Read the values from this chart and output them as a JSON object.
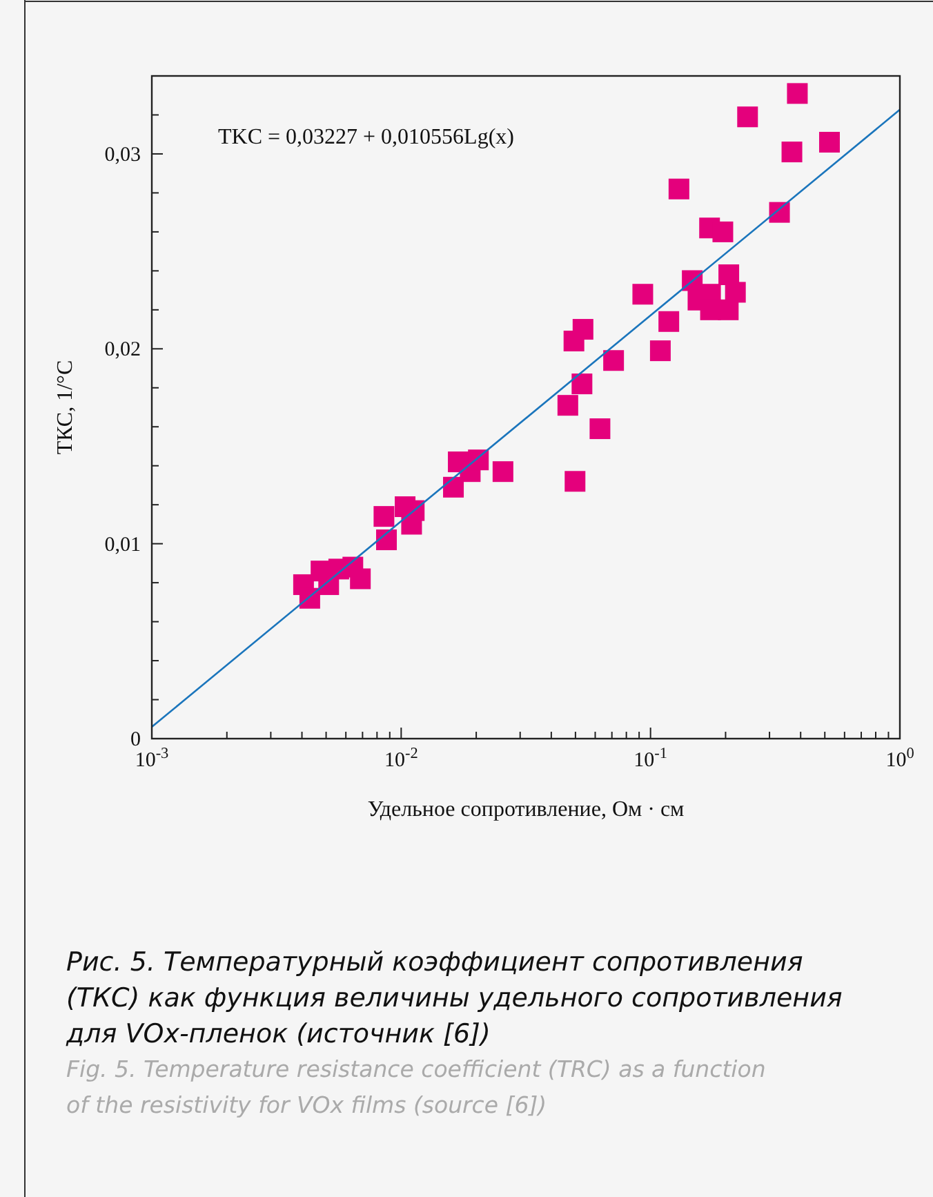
{
  "chart_data": {
    "type": "scatter",
    "xlabel": "Удельное сопротивление, Ом · см",
    "ylabel": "ТКС, 1/°С",
    "log": "x",
    "grid": false,
    "marker": "square",
    "xlim": [
      0.001,
      1
    ],
    "ylim": [
      0,
      0.034
    ],
    "xticks": [
      {
        "value": 0.001,
        "label": "10$^{-3}$"
      },
      {
        "value": 0.002,
        "label": null
      },
      {
        "value": 0.003,
        "label": null
      },
      {
        "value": 0.004,
        "label": null
      },
      {
        "value": 0.005,
        "label": null
      },
      {
        "value": 0.006,
        "label": null
      },
      {
        "value": 0.007,
        "label": null
      },
      {
        "value": 0.008,
        "label": null
      },
      {
        "value": 0.009,
        "label": null
      },
      {
        "value": 0.01,
        "label": "10$^{-2}$"
      },
      {
        "value": 0.02,
        "label": null
      },
      {
        "value": 0.03,
        "label": null
      },
      {
        "value": 0.04,
        "label": null
      },
      {
        "value": 0.05,
        "label": null
      },
      {
        "value": 0.06,
        "label": null
      },
      {
        "value": 0.07,
        "label": null
      },
      {
        "value": 0.08,
        "label": null
      },
      {
        "value": 0.09,
        "label": null
      },
      {
        "value": 0.1,
        "label": "10$^{-1}$"
      },
      {
        "value": 0.2,
        "label": null
      },
      {
        "value": 0.3,
        "label": null
      },
      {
        "value": 0.4,
        "label": null
      },
      {
        "value": 0.5,
        "label": null
      },
      {
        "value": 0.6,
        "label": null
      },
      {
        "value": 0.7,
        "label": null
      },
      {
        "value": 0.8,
        "label": null
      },
      {
        "value": 0.9,
        "label": null
      },
      {
        "value": 1,
        "label": "10$^{0}$"
      }
    ],
    "yticks": [
      {
        "value": 0,
        "label": "0"
      },
      {
        "value": 0.002,
        "label": null
      },
      {
        "value": 0.004,
        "label": null
      },
      {
        "value": 0.006,
        "label": null
      },
      {
        "value": 0.008,
        "label": null
      },
      {
        "value": 0.01,
        "label": "0,01"
      },
      {
        "value": 0.012,
        "label": null
      },
      {
        "value": 0.014,
        "label": null
      },
      {
        "value": 0.016,
        "label": null
      },
      {
        "value": 0.018,
        "label": null
      },
      {
        "value": 0.02,
        "label": "0,02"
      },
      {
        "value": 0.022,
        "label": null
      },
      {
        "value": 0.024,
        "label": null
      },
      {
        "value": 0.026,
        "label": null
      },
      {
        "value": 0.028,
        "label": null
      },
      {
        "value": 0.03,
        "label": "0,03"
      },
      {
        "value": 0.032,
        "label": null
      },
      {
        "value": 0.034,
        "label": null
      }
    ],
    "series": [
      {
        "color": "#e4007c",
        "x": [
          0.00406,
          0.0043,
          0.00477,
          0.00512,
          0.00562,
          0.0064,
          0.00686,
          0.00853,
          0.00873,
          0.01037,
          0.01128,
          0.01101,
          0.0162,
          0.01694,
          0.01892,
          0.0204,
          0.0256,
          0.0466,
          0.0493,
          0.0536,
          0.0531,
          0.0498,
          0.0627,
          0.0711,
          0.0931,
          0.1095,
          0.1184,
          0.13,
          0.147,
          0.155,
          0.1725,
          0.195,
          0.174,
          0.174,
          0.205,
          0.206,
          0.219,
          0.245,
          0.329,
          0.369,
          0.388,
          0.522
        ],
        "values": [
          0.0079,
          0.0072,
          0.0086,
          0.0079,
          0.0087,
          0.0088,
          0.0082,
          0.0114,
          0.0102,
          0.0119,
          0.0117,
          0.011,
          0.0129,
          0.0142,
          0.0137,
          0.0143,
          0.0137,
          0.0171,
          0.0204,
          0.021,
          0.0182,
          0.0132,
          0.0159,
          0.0194,
          0.0228,
          0.0199,
          0.0214,
          0.0282,
          0.0235,
          0.0225,
          0.0262,
          0.026,
          0.0228,
          0.022,
          0.022,
          0.0238,
          0.0229,
          0.0319,
          0.027,
          0.0301,
          0.0331,
          0.0306
        ]
      },
      {
        "type": "line",
        "color": "#1a75bc",
        "marker": "none",
        "x": [
          0.001,
          1
        ],
        "values": [
          0.0006,
          0.03227
        ]
      }
    ],
    "annotations": [
      "TKC = 0,03227 + 0,010556Lg(x)",
      "Рис. 5. Температурный коэффициент сопротивления (ТКС) как функция величины удельного сопротивления для VOx-пленок (источник [6])",
      "Fig. 5. Temperature resistance coefficient (TRC) as a function of the resistivity for VOx films (source [6])"
    ]
  }
}
